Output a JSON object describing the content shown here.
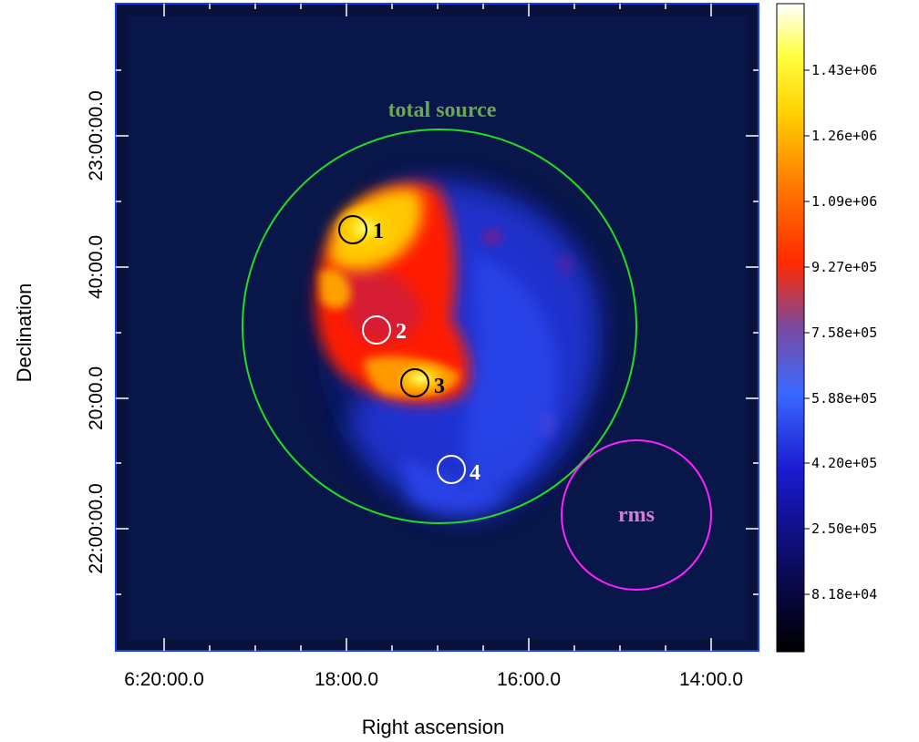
{
  "axes": {
    "xlabel": "Right ascension",
    "ylabel": "Declination",
    "x_ticks": [
      "6:20:00.0",
      "18:00.0",
      "16:00.0",
      "14:00.0"
    ],
    "y_ticks": [
      "22:00:00.0",
      "20:00.0",
      "40:00.0",
      "23:00:00.0"
    ]
  },
  "colorbar": {
    "labels": [
      "1.43e+06",
      "1.26e+06",
      "1.09e+06",
      "9.27e+05",
      "7.58e+05",
      "5.88e+05",
      "4.20e+05",
      "2.50e+05",
      "8.18e+04"
    ]
  },
  "regions": {
    "total_source_label": "total source",
    "rms_label": "rms",
    "r1": "1",
    "r2": "2",
    "r3": "3",
    "r4": "4"
  },
  "colors": {
    "total_source": "#22dd22",
    "rms": "#ff22ff",
    "rms_text": "#d77bd9",
    "total_text": "#6aa84f",
    "frame": "#1a3cff"
  }
}
